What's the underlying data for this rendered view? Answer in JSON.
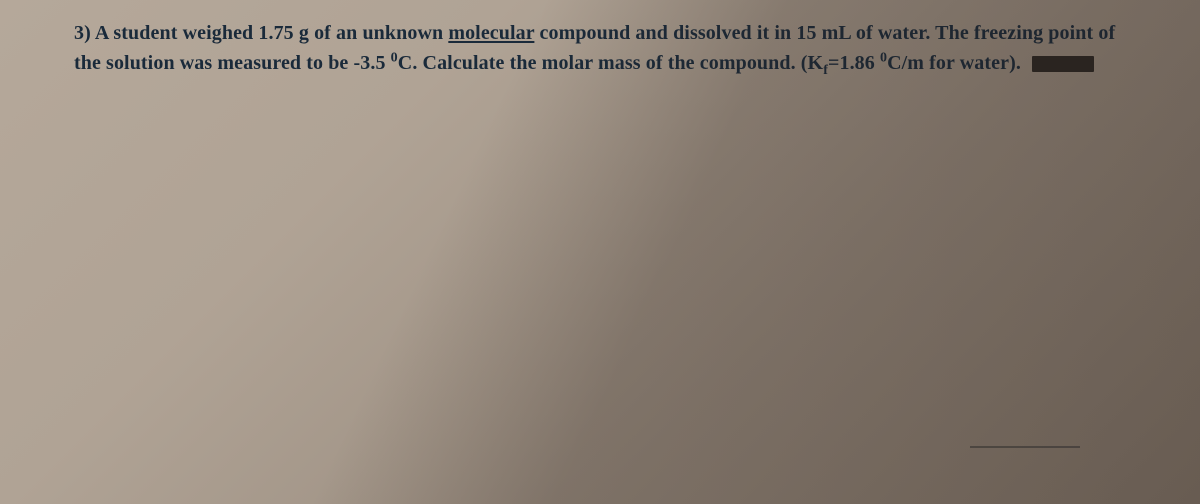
{
  "problem": {
    "number_label": "3)",
    "segments": {
      "s1": "A student weighed 1.75 g of an unknown ",
      "underlined": "molecular",
      "s2": " compound and dissolved it in 15 mL of water. The freezing point of the solution was measured to be -3.5 ",
      "deg1_sup": "0",
      "deg1_unit": "C",
      "s3": ". Calculate the molar mass of the compound. (K",
      "kf_sub": "f",
      "s4": "=1.86 ",
      "deg2_sup": "0",
      "deg2_unit": "C/m",
      "s5": " for water)."
    }
  },
  "colors": {
    "text": "#1a2a3a",
    "bg_light": "#b5a89a",
    "bg_dark": "#8a7d70",
    "redaction": "#2b2623"
  },
  "typography": {
    "font_family": "Georgia, Times New Roman, serif",
    "font_size_pt": 15,
    "font_weight": 600,
    "line_height": 1.5
  }
}
